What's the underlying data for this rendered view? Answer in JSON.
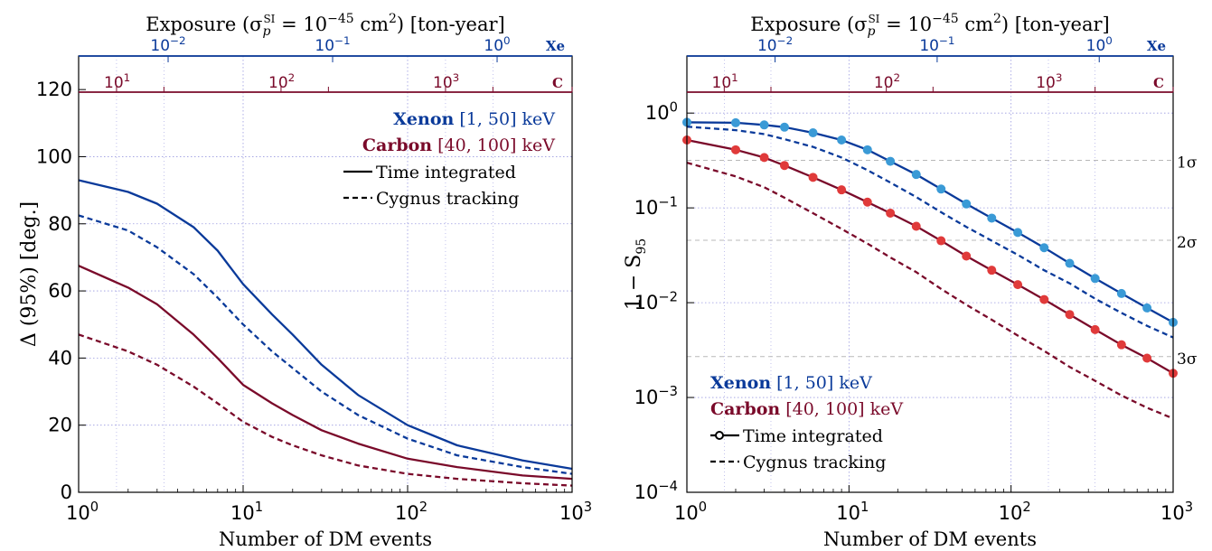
{
  "colors": {
    "xenon": "#0a3a9a",
    "carbon": "#7a0a2a",
    "xenon_dot": "#3a9ad6",
    "carbon_dot": "#e03a3a",
    "grid": "#9a9ae0",
    "sigma_line": "#b8b8b8",
    "black": "#000000"
  },
  "shared": {
    "top_title": "Exposure (σ",
    "top_title_sub": "p",
    "top_title_sup": "SI",
    "top_title_rest": " = 10",
    "top_title_exp": "−45",
    "top_title_unit": " cm",
    "top_title_unit_sup": "2",
    "top_title_tail": ") [ton-year]",
    "xe_axis_label": "Xe",
    "c_axis_label": "C",
    "xe_tick_labels": [
      {
        "base": "10",
        "exp": "−2"
      },
      {
        "base": "10",
        "exp": "−1"
      },
      {
        "base": "10",
        "exp": "0"
      }
    ],
    "c_tick_labels": [
      {
        "base": "10",
        "exp": "1"
      },
      {
        "base": "10",
        "exp": "2"
      },
      {
        "base": "10",
        "exp": "3"
      }
    ],
    "x_tick_labels": [
      {
        "base": "10",
        "exp": "0"
      },
      {
        "base": "10",
        "exp": "1"
      },
      {
        "base": "10",
        "exp": "2"
      },
      {
        "base": "10",
        "exp": "3"
      }
    ],
    "xlabel": "Number of DM events"
  },
  "chart_data": [
    {
      "type": "line",
      "xscale": "log",
      "xlim": [
        1,
        1000
      ],
      "ylim": [
        0,
        130
      ],
      "xlabel": "Number of DM events",
      "ylabel": "Δ (95%) [deg.]",
      "y_ticks": [
        "0",
        "20",
        "40",
        "60",
        "80",
        "100",
        "120"
      ],
      "grid": true,
      "legend_position": "top-right",
      "legend": {
        "xenon_name": "Xenon",
        "xenon_range": "[1, 50] keV",
        "carbon_name": "Carbon",
        "carbon_range": "[40, 100] keV",
        "solid_label": "Time integrated",
        "dashed_label": "Cygnus tracking"
      },
      "series": [
        {
          "color_key": "xenon",
          "style": "solid",
          "x": [
            1,
            2,
            3,
            5,
            7,
            10,
            15,
            20,
            30,
            50,
            100,
            200,
            500,
            1000
          ],
          "values": [
            93,
            89.5,
            86,
            79,
            72,
            62,
            53,
            47,
            38,
            29,
            20,
            14,
            9.5,
            7
          ]
        },
        {
          "color_key": "xenon",
          "style": "dashed",
          "x": [
            1,
            2,
            3,
            5,
            7,
            10,
            15,
            20,
            30,
            50,
            100,
            200,
            500,
            1000
          ],
          "values": [
            82.5,
            78,
            73,
            65,
            58,
            50,
            42,
            37,
            30,
            23,
            16,
            11,
            7.5,
            5.5
          ]
        },
        {
          "color_key": "carbon",
          "style": "solid",
          "x": [
            1,
            2,
            3,
            5,
            7,
            10,
            15,
            20,
            30,
            50,
            100,
            200,
            500,
            1000
          ],
          "values": [
            67.5,
            61,
            56,
            47,
            40,
            32,
            26.5,
            23,
            18.5,
            14.5,
            10,
            7.5,
            5,
            4
          ]
        },
        {
          "color_key": "carbon",
          "style": "dashed",
          "x": [
            1,
            2,
            3,
            5,
            7,
            10,
            15,
            20,
            30,
            50,
            100,
            200,
            500,
            1000
          ],
          "values": [
            47,
            42,
            38,
            31.5,
            26.5,
            21,
            16.5,
            14,
            11,
            8,
            5.5,
            4,
            2.7,
            2
          ]
        }
      ]
    },
    {
      "type": "line",
      "xscale": "log",
      "yscale": "log",
      "xlim": [
        1,
        1000
      ],
      "ylim": [
        0.0001,
        4
      ],
      "xlabel": "Number of DM events",
      "ylabel": "1 − S",
      "ylabel_sub": "95",
      "y_tick_labels": [
        {
          "base": "10",
          "exp": "0"
        },
        {
          "base": "10",
          "exp": "−1"
        },
        {
          "base": "10",
          "exp": "−2"
        },
        {
          "base": "10",
          "exp": "−3"
        },
        {
          "base": "10",
          "exp": "−4"
        }
      ],
      "sigma_lines": [
        {
          "label": "1σ",
          "y": 0.317
        },
        {
          "label": "2σ",
          "y": 0.0455
        },
        {
          "label": "3σ",
          "y": 0.0027
        }
      ],
      "grid": true,
      "legend_position": "bottom-left",
      "legend": {
        "xenon_name": "Xenon",
        "xenon_range": "[1, 50] keV",
        "carbon_name": "Carbon",
        "carbon_range": "[40, 100] keV",
        "solid_label": "Time integrated",
        "dashed_label": "Cygnus tracking"
      },
      "series": [
        {
          "color_key": "xenon",
          "style": "solid-markers",
          "x": [
            1,
            2,
            3,
            4,
            6,
            9,
            13,
            18,
            26,
            37,
            53,
            76,
            110,
            160,
            230,
            330,
            480,
            690,
            1000
          ],
          "values": [
            0.8,
            0.79,
            0.75,
            0.71,
            0.62,
            0.52,
            0.41,
            0.31,
            0.225,
            0.158,
            0.11,
            0.078,
            0.055,
            0.038,
            0.026,
            0.018,
            0.0125,
            0.0088,
            0.0062
          ]
        },
        {
          "color_key": "xenon",
          "style": "dashed",
          "x": [
            1,
            2,
            3,
            4,
            6,
            9,
            13,
            18,
            26,
            37,
            53,
            76,
            110,
            160,
            230,
            330,
            480,
            690,
            1000
          ],
          "values": [
            0.72,
            0.66,
            0.6,
            0.53,
            0.44,
            0.34,
            0.25,
            0.185,
            0.13,
            0.09,
            0.063,
            0.045,
            0.032,
            0.022,
            0.016,
            0.011,
            0.0078,
            0.0057,
            0.0043
          ]
        },
        {
          "color_key": "carbon",
          "style": "solid-markers",
          "x": [
            1,
            2,
            3,
            4,
            6,
            9,
            13,
            18,
            26,
            37,
            53,
            76,
            110,
            160,
            230,
            330,
            480,
            690,
            1000
          ],
          "values": [
            0.52,
            0.41,
            0.34,
            0.28,
            0.21,
            0.155,
            0.115,
            0.088,
            0.064,
            0.045,
            0.031,
            0.022,
            0.0155,
            0.0108,
            0.0075,
            0.0052,
            0.0036,
            0.0026,
            0.0018
          ]
        },
        {
          "color_key": "carbon",
          "style": "dashed",
          "x": [
            1,
            2,
            3,
            4,
            6,
            9,
            13,
            18,
            26,
            37,
            53,
            76,
            110,
            160,
            230,
            330,
            480,
            690,
            1000
          ],
          "values": [
            0.3,
            0.215,
            0.165,
            0.128,
            0.088,
            0.06,
            0.042,
            0.03,
            0.021,
            0.014,
            0.0095,
            0.0066,
            0.0045,
            0.0031,
            0.0021,
            0.0015,
            0.00105,
            0.00078,
            0.0006
          ]
        }
      ]
    }
  ]
}
